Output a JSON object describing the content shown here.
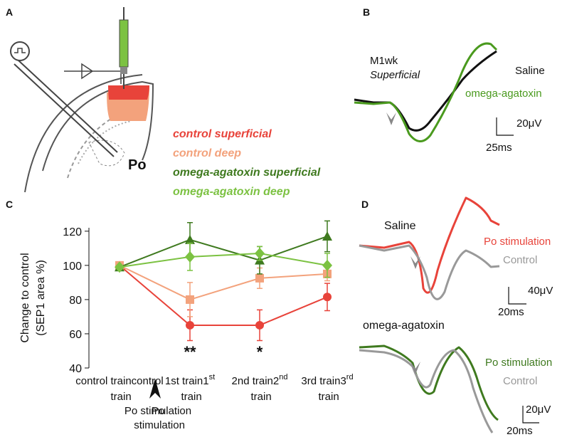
{
  "panel_labels": [
    "A",
    "B",
    "C",
    "D"
  ],
  "panel_a": {
    "label": "Po"
  },
  "panel_b": {
    "title": "M1wk",
    "subtitle": "Superficial",
    "labels": [
      "Saline",
      "omega-agatoxin"
    ],
    "scale_y": "20μV",
    "scale_x": "25ms"
  },
  "panel_d": {
    "top": {
      "title": "Saline",
      "labels": [
        "Po stimulation",
        "Control"
      ],
      "scale_y": "40μV",
      "scale_x": "20ms"
    },
    "bottom": {
      "title": "omega-agatoxin",
      "labels": [
        "Po stimulation",
        "Control"
      ],
      "scale_y": "20μV",
      "scale_x": "20ms"
    }
  },
  "chart_data": {
    "type": "line",
    "y_label": [
      "Change to control",
      "(SEP1 area %)"
    ],
    "categories": [
      "control train",
      "1st train",
      "2nd train",
      "3rd train"
    ],
    "annotation": "Po stimulation",
    "significance": [
      "**",
      "*"
    ],
    "ylim": [
      40,
      122
    ],
    "yticks": [
      40,
      60,
      80,
      100,
      120
    ],
    "series": [
      {
        "name": "control superficial",
        "color": "#e8433a",
        "marker": "circle",
        "values": [
          100,
          65,
          65,
          81.5
        ],
        "errors": [
          null,
          9,
          9,
          8
        ]
      },
      {
        "name": "control deep",
        "color": "#f3a27c",
        "marker": "square",
        "values": [
          100,
          80,
          92.5,
          95
        ],
        "errors": [
          null,
          10,
          6,
          4
        ]
      },
      {
        "name": "omega-agatoxin superficial",
        "color": "#3f7a1f",
        "marker": "triangle",
        "values": [
          99,
          115,
          103,
          117
        ],
        "errors": [
          null,
          10,
          8,
          9
        ]
      },
      {
        "name": "omega-agatoxin deep",
        "color": "#7cc242",
        "marker": "diamond",
        "values": [
          99,
          105,
          107,
          100
        ],
        "errors": [
          null,
          8,
          4,
          7
        ]
      }
    ]
  }
}
